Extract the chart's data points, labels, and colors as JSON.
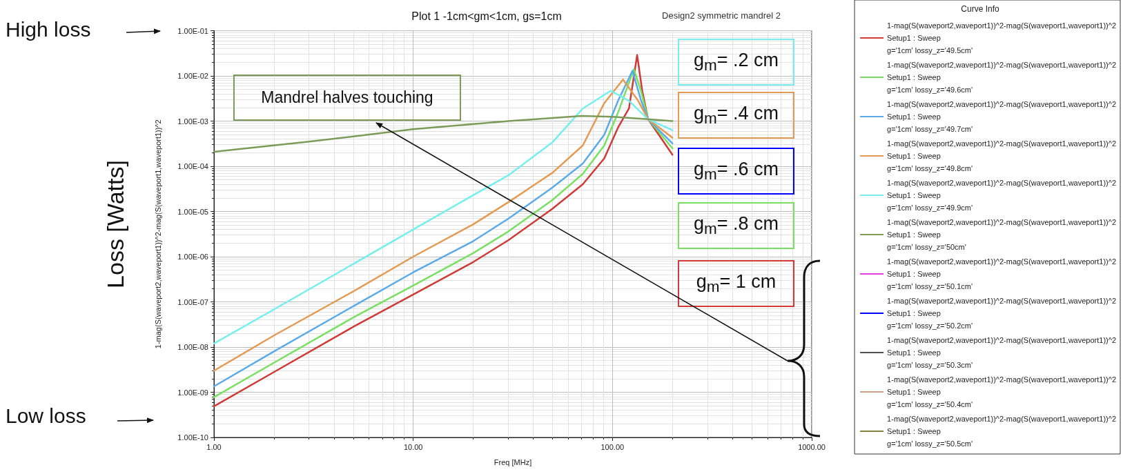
{
  "chart_data": {
    "type": "line",
    "title": "Plot 1 -1cm<gm<1cm, gs=1cm",
    "subtitle": "Design2 symmetric mandrel 2",
    "xlabel": "Freq [MHz]",
    "ylabel": "1-mag(S(waveport2,waveport1))^2-mag(S(waveport1,waveport1))^2",
    "legend_title": "Curve Info",
    "annotations": [
      "High loss",
      "Low loss",
      "Loss [Watts]",
      "Mandrel halves touching",
      "g$_{m}$= .2 cm",
      "g$_{m}$= .4 cm",
      "g$_{m}$= .6 cm",
      "g$_{m}$= .8 cm",
      "g$_{m}$= 1 cm"
    ],
    "log": "xy",
    "grid": true,
    "legend": "right",
    "marker": "none",
    "line_style": "solid",
    "xlim": [
      1,
      1000
    ],
    "xticks": [
      {
        "value": 1,
        "label": "1.00"
      },
      {
        "value": 10,
        "label": "10.00"
      },
      {
        "value": 100,
        "label": "100.00"
      },
      {
        "value": 1000,
        "label": "1000.00"
      }
    ],
    "ylim": [
      1e-10,
      0.1
    ],
    "yticks": [
      {
        "value": 1e-10,
        "label": "1.00E-10"
      },
      {
        "value": 1e-09,
        "label": "1.00E-09"
      },
      {
        "value": 1e-08,
        "label": "1.00E-08"
      },
      {
        "value": 1e-07,
        "label": "1.00E-07"
      },
      {
        "value": 1e-06,
        "label": "1.00E-06"
      },
      {
        "value": 1e-05,
        "label": "1.00E-05"
      },
      {
        "value": 0.0001,
        "label": "1.00E-04"
      },
      {
        "value": 0.001,
        "label": "1.00E-03"
      },
      {
        "value": 0.01,
        "label": "1.00E-02"
      },
      {
        "value": 0.1,
        "label": "1.00E-01"
      }
    ],
    "series": [
      {
        "name": "1-mag(S(waveport2,waveport1))^2-mag(S(waveport1,waveport1))^2\nSetup1 : Sweep\ng='1cm' lossy_z='49.5cm'",
        "color": "#d03a36",
        "x": [
          1,
          2,
          5,
          10,
          20,
          30,
          50,
          71,
          91,
          107,
          121,
          133,
          141,
          151,
          200
        ],
        "values": [
          4.9e-10,
          2.8e-09,
          2.8e-08,
          1.45e-07,
          7.6e-07,
          2.3e-06,
          1.15e-05,
          4e-05,
          0.00015,
          0.00074,
          0.0019,
          0.029,
          0.0047,
          0.0011,
          0.00018
        ]
      },
      {
        "name": "1-mag(S(waveport2,waveport1))^2-mag(S(waveport1,waveport1))^2\nSetup1 : Sweep\ng='1cm' lossy_z='49.6cm'",
        "color": "#78e060",
        "x": [
          1,
          2,
          5,
          10,
          20,
          30,
          50,
          71,
          91,
          107,
          128,
          139,
          151,
          200
        ],
        "values": [
          7.8e-10,
          4.5e-09,
          4.5e-08,
          2.3e-07,
          1.2e-06,
          3.6e-06,
          1.8e-05,
          6.8e-05,
          0.00029,
          0.0016,
          0.014,
          0.0047,
          0.0011,
          0.00025
        ]
      },
      {
        "name": "1-mag(S(waveport2,waveport1))^2-mag(S(waveport1,waveport1))^2\nSetup1 : Sweep\ng='1cm' lossy_z='49.7cm'",
        "color": "#5aaaea",
        "x": [
          1,
          2,
          5,
          10,
          20,
          30,
          50,
          71,
          91,
          107,
          126,
          139,
          151,
          200
        ],
        "values": [
          1.35e-09,
          8e-09,
          8e-08,
          4.5e-07,
          2.2e-06,
          6.9e-06,
          3.4e-05,
          0.000115,
          0.0005,
          0.0029,
          0.013,
          0.0029,
          0.0011,
          0.00032
        ]
      },
      {
        "name": "1-mag(S(waveport2,waveport1))^2-mag(S(waveport1,waveport1))^2\nSetup1 : Sweep\ng='1cm' lossy_z='49.8cm'",
        "color": "#e49a52",
        "x": [
          1,
          2,
          5,
          10,
          20,
          30,
          50,
          71,
          91,
          113,
          134,
          151,
          200
        ],
        "values": [
          3e-09,
          1.8e-08,
          1.7e-07,
          1e-06,
          5.2e-06,
          1.6e-05,
          7.2e-05,
          0.00029,
          0.0025,
          0.0083,
          0.0029,
          0.0011,
          0.00043
        ]
      },
      {
        "name": "1-mag(S(waveport2,waveport1))^2-mag(S(waveport1,waveport1))^2\nSetup1 : Sweep\ng='1cm' lossy_z='49.9cm'",
        "color": "#74eeee",
        "x": [
          1,
          2,
          5,
          10,
          20,
          30,
          50,
          71,
          98,
          121,
          151,
          200
        ],
        "values": [
          1.2e-08,
          6.8e-08,
          6.9e-07,
          4e-06,
          2.3e-05,
          6.3e-05,
          0.00034,
          0.0019,
          0.0047,
          0.0028,
          0.0011,
          0.00063
        ]
      },
      {
        "name": "1-mag(S(waveport2,waveport1))^2-mag(S(waveport1,waveport1))^2\nSetup1 : Sweep\ng='1cm' lossy_z='50cm'",
        "color": "#7c9a58",
        "x": [
          1,
          3,
          10,
          30,
          70,
          100,
          150,
          200
        ],
        "values": [
          0.00021,
          0.00035,
          0.00066,
          0.001,
          0.0013,
          0.00125,
          0.0011,
          0.001
        ]
      },
      {
        "name": "1-mag(S(waveport2,waveport1))^2-mag(S(waveport1,waveport1))^2\nSetup1 : Sweep\ng='1cm' lossy_z='50.1cm'",
        "color": "#e040e0"
      },
      {
        "name": "1-mag(S(waveport2,waveport1))^2-mag(S(waveport1,waveport1))^2\nSetup1 : Sweep\ng='1cm' lossy_z='50.2cm'",
        "color": "#0000ff"
      },
      {
        "name": "1-mag(S(waveport2,waveport1))^2-mag(S(waveport1,waveport1))^2\nSetup1 : Sweep\ng='1cm' lossy_z='50.3cm'",
        "color": "#505050"
      },
      {
        "name": "1-mag(S(waveport2,waveport1))^2-mag(S(waveport1,waveport1))^2\nSetup1 : Sweep\ng='1cm' lossy_z='50.4cm'",
        "color": "#c8a088"
      },
      {
        "name": "1-mag(S(waveport2,waveport1))^2-mag(S(waveport1,waveport1))^2\nSetup1 : Sweep\ng='1cm' lossy_z='50.5cm'",
        "color": "#808040"
      }
    ]
  }
}
